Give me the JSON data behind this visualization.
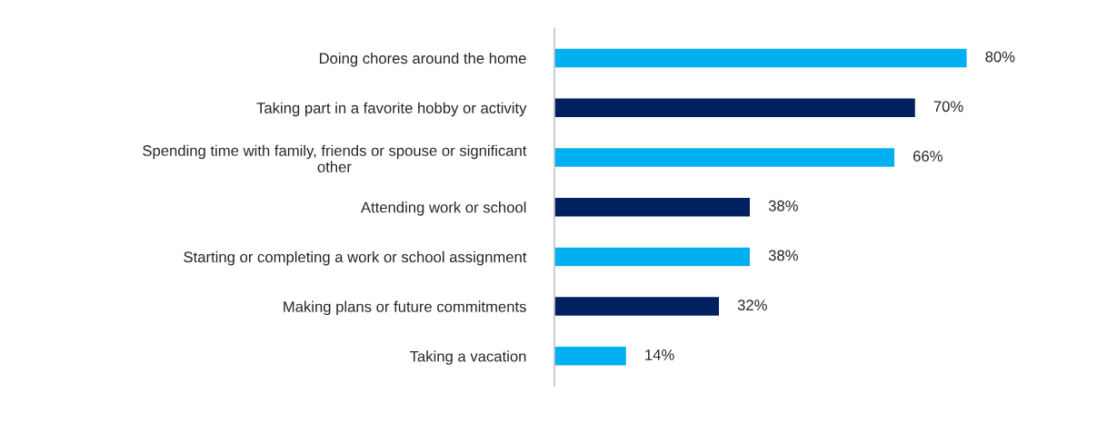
{
  "chart_data": {
    "type": "bar",
    "orientation": "horizontal",
    "categories": [
      "Doing chores around the home",
      "Taking part in a favorite hobby or activity",
      "Spending time with family, friends or spouse or significant\nother",
      "Attending work or school",
      "Starting or completing a work or school assignment",
      "Making plans or future commitments",
      "Taking a vacation"
    ],
    "values": [
      80,
      70,
      66,
      38,
      38,
      32,
      14
    ],
    "value_labels": [
      "80%",
      "70%",
      "66%",
      "38%",
      "38%",
      "32%",
      "14%"
    ],
    "colors": [
      "#00b0f0",
      "#002060",
      "#00b0f0",
      "#002060",
      "#00b0f0",
      "#002060",
      "#00b0f0"
    ],
    "tick_labels": "y",
    "grid": false,
    "legend": false
  }
}
